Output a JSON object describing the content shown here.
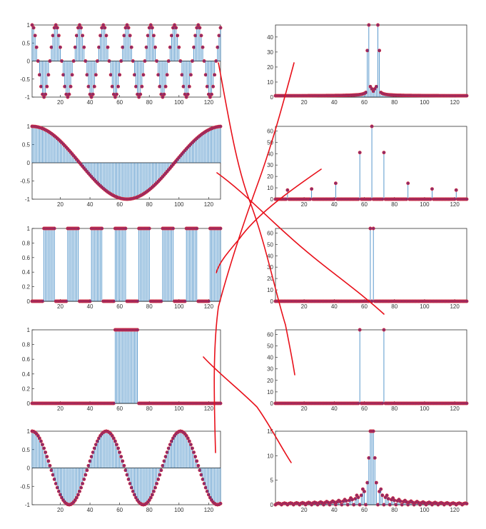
{
  "colors": {
    "stem": "#2f7fbf",
    "marker_fill": "#8a2b6b",
    "marker_edge": "#d62839",
    "axis": "#333333",
    "zero_line": "#000000",
    "annotation": "#e8101a"
  },
  "chart_data": [
    {
      "type": "stem",
      "name": "left-1",
      "xlim": [
        1,
        128
      ],
      "ylim": [
        -1,
        1
      ],
      "xticks": [
        "20",
        "40",
        "60",
        "80",
        "100",
        "120"
      ],
      "yticks": [
        "-1",
        "-0.5",
        "0",
        "0.5",
        "1"
      ],
      "signal": "cosine",
      "period": 16,
      "n": 128
    },
    {
      "type": "stem",
      "name": "right-1",
      "xlim": [
        1,
        128
      ],
      "ylim": [
        0,
        48
      ],
      "xticks": [
        "20",
        "40",
        "60",
        "80",
        "100",
        "120"
      ],
      "yticks": [
        "0",
        "10",
        "20",
        "30",
        "40"
      ],
      "signal": "leak",
      "peaks": [
        [
          63,
          48
        ],
        [
          69,
          48
        ]
      ],
      "shoulders": [
        [
          62,
          31
        ],
        [
          70,
          31
        ]
      ],
      "baseline": 0.8,
      "n": 128
    },
    {
      "type": "stem",
      "name": "left-2",
      "xlim": [
        1,
        128
      ],
      "ylim": [
        -1,
        1
      ],
      "xticks": [
        "20",
        "40",
        "60",
        "80",
        "100",
        "120"
      ],
      "yticks": [
        "-1",
        "-0.5",
        "0",
        "0.5",
        "1"
      ],
      "signal": "cosine",
      "period": 128,
      "n": 128
    },
    {
      "type": "stem",
      "name": "right-2",
      "xlim": [
        1,
        128
      ],
      "ylim": [
        0,
        64
      ],
      "xticks": [
        "20",
        "40",
        "60",
        "80",
        "100",
        "120"
      ],
      "yticks": [
        "0",
        "10",
        "20",
        "30",
        "40",
        "50",
        "60"
      ],
      "signal": "sparse",
      "points": [
        [
          9,
          8
        ],
        [
          25,
          9
        ],
        [
          41,
          14
        ],
        [
          57,
          41
        ],
        [
          65,
          64
        ],
        [
          73,
          41
        ],
        [
          89,
          14
        ],
        [
          105,
          9
        ],
        [
          121,
          8
        ]
      ],
      "n": 128
    },
    {
      "type": "stem",
      "name": "left-3",
      "xlim": [
        1,
        128
      ],
      "ylim": [
        0,
        1
      ],
      "xticks": [
        "20",
        "40",
        "60",
        "80",
        "100",
        "120"
      ],
      "yticks": [
        "0",
        "0.2",
        "0.4",
        "0.6",
        "0.8",
        "1"
      ],
      "signal": "pulse_train",
      "period": 16,
      "on_start": 8,
      "on_width": 8,
      "n": 128
    },
    {
      "type": "stem",
      "name": "right-3",
      "xlim": [
        1,
        128
      ],
      "ylim": [
        0,
        64
      ],
      "xticks": [
        "20",
        "40",
        "60",
        "80",
        "100",
        "120"
      ],
      "yticks": [
        "0",
        "10",
        "20",
        "30",
        "40",
        "50",
        "60"
      ],
      "signal": "sparse",
      "points": [
        [
          64,
          64
        ],
        [
          66,
          64
        ]
      ],
      "n": 128
    },
    {
      "type": "stem",
      "name": "left-4",
      "xlim": [
        1,
        128
      ],
      "ylim": [
        0,
        1
      ],
      "xticks": [
        "20",
        "40",
        "60",
        "80",
        "100",
        "120"
      ],
      "yticks": [
        "0",
        "0.2",
        "0.4",
        "0.6",
        "0.8",
        "1"
      ],
      "signal": "rect",
      "on_start": 57,
      "on_end": 72,
      "n": 128
    },
    {
      "type": "stem",
      "name": "right-4",
      "xlim": [
        1,
        128
      ],
      "ylim": [
        0,
        64
      ],
      "xticks": [
        "20",
        "40",
        "60",
        "80",
        "100",
        "120"
      ],
      "yticks": [
        "0",
        "10",
        "20",
        "30",
        "40",
        "50",
        "60"
      ],
      "signal": "sparse",
      "points": [
        [
          57,
          64
        ],
        [
          73,
          64
        ]
      ],
      "n": 128
    },
    {
      "type": "stem",
      "name": "left-5",
      "xlim": [
        1,
        128
      ],
      "ylim": [
        -1,
        1
      ],
      "xticks": [
        "20",
        "40",
        "60",
        "80",
        "100",
        "120"
      ],
      "yticks": [
        "-1",
        "-0.5",
        "0",
        "0.5",
        "1"
      ],
      "signal": "cosine",
      "period": 50,
      "n": 128
    },
    {
      "type": "stem",
      "name": "right-5",
      "xlim": [
        1,
        128
      ],
      "ylim": [
        0,
        15
      ],
      "xticks": [
        "20",
        "40",
        "60",
        "80",
        "100",
        "120"
      ],
      "yticks": [
        "0",
        "5",
        "10",
        "15"
      ],
      "signal": "sinc",
      "center": 65,
      "peak": 15,
      "width": 16,
      "n": 128
    }
  ]
}
